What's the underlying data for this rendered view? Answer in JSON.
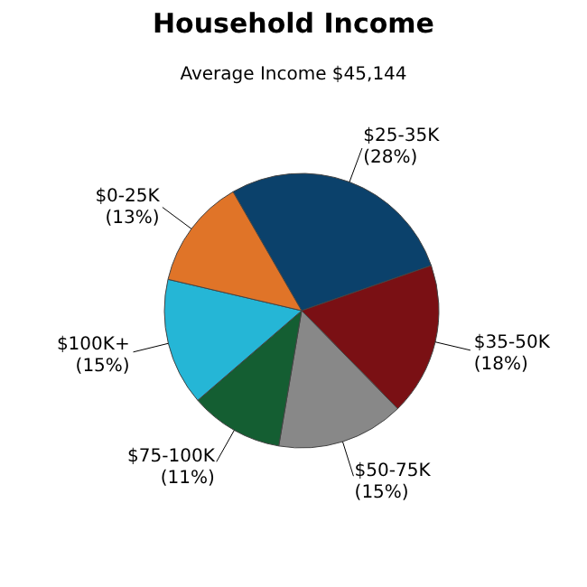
{
  "chart_data": {
    "type": "pie",
    "title": "Household Income",
    "subtitle": "Average Income  $45,144",
    "categories": [
      "$25-35K",
      "$35-50K",
      "$50-75K",
      "$75-100K",
      "$100K+",
      "$0-25K"
    ],
    "values": [
      28,
      18,
      15,
      11,
      15,
      13
    ],
    "value_labels": [
      "(28%)",
      "(18%)",
      "(15%)",
      "(11%)",
      "(15%)",
      "(13%)"
    ],
    "colors": [
      "#0b416b",
      "#7a1014",
      "#888888",
      "#145e32",
      "#25b6d6",
      "#e07428"
    ],
    "legend": false
  }
}
